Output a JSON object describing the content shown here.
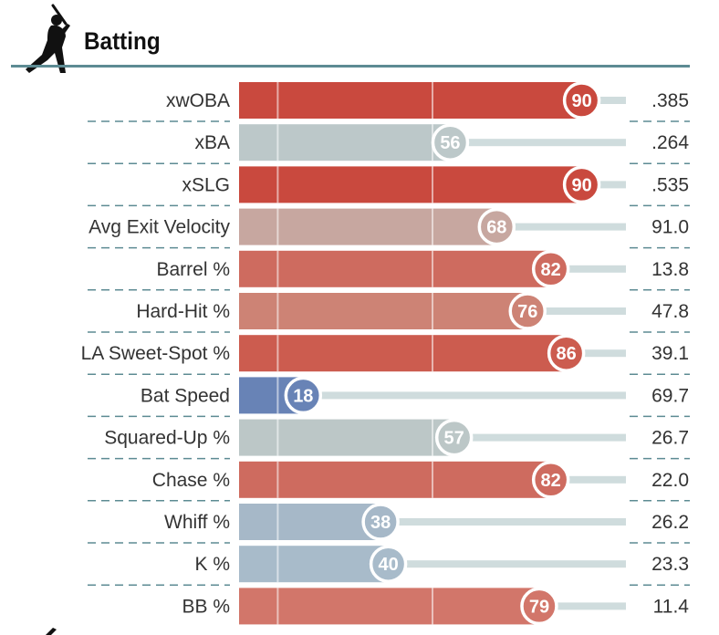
{
  "section": {
    "title": "Batting",
    "icon": "batter-silhouette-icon"
  },
  "chart_data": {
    "type": "bar",
    "orientation": "horizontal",
    "xlim": [
      0,
      100
    ],
    "reference_lines": [
      10,
      50
    ],
    "categories": [
      "xwOBA",
      "xBA",
      "xSLG",
      "Avg Exit Velocity",
      "Barrel %",
      "Hard-Hit %",
      "LA Sweet-Spot %",
      "Bat Speed",
      "Squared-Up %",
      "Chase %",
      "Whiff %",
      "K %",
      "BB %"
    ],
    "percentiles": [
      90,
      56,
      90,
      68,
      82,
      76,
      86,
      18,
      57,
      82,
      38,
      40,
      79
    ],
    "stat_values": [
      ".385",
      ".264",
      ".535",
      "91.0",
      "13.8",
      "47.8",
      "39.1",
      "69.7",
      "26.7",
      "22.0",
      "26.2",
      "23.3",
      "11.4"
    ],
    "colors": [
      "#c9493e",
      "#bcc8c9",
      "#c9493e",
      "#c7a7a0",
      "#ce6b5f",
      "#cd8375",
      "#cc5c4f",
      "#6883b6",
      "#bcc7c7",
      "#ce6b5f",
      "#a6b8c8",
      "#a8bbca",
      "#d2766a"
    ]
  }
}
